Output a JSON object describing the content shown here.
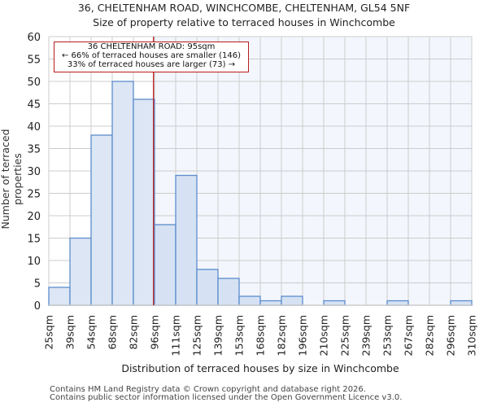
{
  "title_line1": "36, CHELTENHAM ROAD, WINCHCOMBE, CHELTENHAM, GL54 5NF",
  "title_line2": "Size of property relative to terraced houses in Winchcombe",
  "annotation": {
    "line1": "36 CHELTENHAM ROAD: 95sqm",
    "line2": "← 66% of terraced houses are smaller (146)",
    "line3": "33% of terraced houses are larger (73) →"
  },
  "footer": {
    "line1": "Contains HM Land Registry data © Crown copyright and database right 2026.",
    "line2": "Contains public sector information licensed under the Open Government Licence v3.0."
  },
  "colors": {
    "bar_fill": "#dce6f4",
    "bar_stroke": "#5b8ccc",
    "highlight_bg": "#f3f6fc",
    "marker_line": "#b71c1c",
    "grid": "#cccccc"
  },
  "chart_data": {
    "type": "bar",
    "title": "36, CHELTENHAM ROAD, WINCHCOMBE, CHELTENHAM, GL54 5NF — Size of property relative to terraced houses in Winchcombe",
    "xlabel": "Distribution of terraced houses by size in Winchcombe",
    "ylabel": "Number of terraced properties",
    "bin_edges": [
      "25sqm",
      "39sqm",
      "54sqm",
      "68sqm",
      "82sqm",
      "96sqm",
      "111sqm",
      "125sqm",
      "139sqm",
      "153sqm",
      "168sqm",
      "182sqm",
      "196sqm",
      "210sqm",
      "225sqm",
      "239sqm",
      "253sqm",
      "267sqm",
      "282sqm",
      "296sqm",
      "310sqm"
    ],
    "categories": [
      "25-39",
      "39-54",
      "54-68",
      "68-82",
      "82-96",
      "96-111",
      "111-125",
      "125-139",
      "139-153",
      "153-168",
      "168-182",
      "182-196",
      "196-210",
      "210-225",
      "225-239",
      "239-253",
      "253-267",
      "267-282",
      "282-296",
      "296-310"
    ],
    "values": [
      4,
      15,
      38,
      50,
      46,
      18,
      29,
      8,
      6,
      2,
      1,
      2,
      0,
      1,
      0,
      0,
      1,
      0,
      0,
      1
    ],
    "yticks": [
      0,
      5,
      10,
      15,
      20,
      25,
      30,
      35,
      40,
      45,
      50,
      55,
      60
    ],
    "ylim": [
      0,
      60
    ],
    "grid": true,
    "marker": {
      "value_sqm": 95,
      "label": "36 CHELTENHAM ROAD: 95sqm"
    },
    "annotations": [
      "36 CHELTENHAM ROAD: 95sqm",
      "← 66% of terraced houses are smaller (146)",
      "33% of terraced houses are larger (73) →"
    ]
  }
}
